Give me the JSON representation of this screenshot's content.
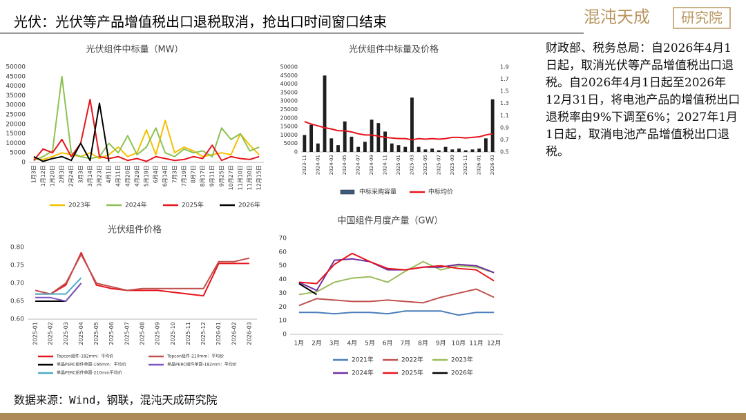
{
  "header": {
    "title": "光伏：光伏等产品增值税出口退税取消，抢出口时间窗口结束",
    "logo_name": "混沌天成",
    "logo_box": "研究院"
  },
  "note": "财政部、税务总局：自2026年4月1日起，取消光伏等产品增值税出口退税。自2026年4月1日起至2026年12月31日，将电池产品的增值税出口退税率由9%下调至6%；2027年1月1日起，取消电池产品增值税出口退税。",
  "source": "数据来源：Wind，钢联，混沌天成研究院",
  "chart_data": [
    {
      "type": "line",
      "title": "光伏组件中标量（MW）",
      "categories": [
        "1月3日",
        "1月12日",
        "1月20日",
        "2月3日",
        "2月24日",
        "3月3日",
        "3月14日",
        "3月23日",
        "4月1日",
        "4月11日",
        "4月20日",
        "4月29日",
        "5月19日",
        "6月4日",
        "6月14日",
        "7月3日",
        "7月19日",
        "8月7日",
        "8月17日",
        "9月11日",
        "9月25日",
        "10月27日",
        "11月10日",
        "11月30日",
        "12月15日"
      ],
      "ylim": [
        0,
        50000
      ],
      "yticks": [
        0,
        5000,
        10000,
        15000,
        20000,
        25000,
        30000,
        35000,
        40000,
        45000,
        50000
      ],
      "grid": false,
      "series": [
        {
          "name": "2023年",
          "color": "#f5c000",
          "values": [
            2000,
            1500,
            3000,
            5000,
            4000,
            3000,
            5000,
            2000,
            4000,
            8000,
            3000,
            5000,
            17000,
            4000,
            22000,
            5000,
            8000,
            6000,
            3000,
            4000,
            5000,
            4000,
            15000,
            9000,
            4000
          ]
        },
        {
          "name": "2024年",
          "color": "#8cc152",
          "values": [
            1000,
            3000,
            6000,
            45000,
            5000,
            3000,
            2000,
            3000,
            10000,
            5000,
            14000,
            4000,
            8000,
            18000,
            5000,
            3000,
            7000,
            5000,
            6000,
            3000,
            18000,
            12000,
            15000,
            6000,
            8000
          ]
        },
        {
          "name": "2025年",
          "color": "#e8141c",
          "values": [
            1000,
            7000,
            5000,
            12000,
            3000,
            10000,
            33000,
            3000,
            2000,
            3000,
            1000,
            2000,
            500,
            3000,
            2000,
            1000,
            1500,
            3000,
            2000,
            9000,
            1000,
            3000,
            2000,
            1500,
            3000
          ]
        },
        {
          "name": "2026年",
          "color": "#000000",
          "values": [
            3000,
            500,
            2000,
            3000,
            1000,
            10000,
            1000,
            31000,
            500,
            null,
            null,
            null,
            null,
            null,
            null,
            null,
            null,
            null,
            null,
            null,
            null,
            null,
            null,
            null,
            null
          ]
        }
      ]
    },
    {
      "type": "combo",
      "title": "光伏组件中标量及价格",
      "categories": [
        "2023-11",
        null,
        "2024-01",
        null,
        "2024-03",
        null,
        "2024-05",
        null,
        "2024-07",
        null,
        "2024-09",
        null,
        "2024-11",
        null,
        "2025-01",
        null,
        "2025-03",
        null,
        "2025-05",
        null,
        "2025-07",
        null,
        "2025-09",
        null,
        "2025-11",
        null,
        "2026-01",
        null,
        "2026-03"
      ],
      "ylim": [
        0,
        50000
      ],
      "yticks": [
        0,
        5000,
        10000,
        15000,
        20000,
        25000,
        30000,
        35000,
        40000,
        45000,
        50000
      ],
      "y2lim": [
        0.5,
        1.9
      ],
      "y2ticks": [
        0.5,
        0.7,
        0.9,
        1.1,
        1.3,
        1.5,
        1.7,
        1.9
      ],
      "grid": false,
      "series": [
        {
          "name": "中标采购容量",
          "type": "bar",
          "color": "#1f1f1f",
          "legend_color": "#3d5a80",
          "values": [
            10000,
            16000,
            5000,
            45000,
            8000,
            4000,
            18000,
            9000,
            3000,
            6000,
            19000,
            17000,
            12000,
            5000,
            4000,
            3000,
            32000,
            3000,
            1500,
            2000,
            1000,
            3000,
            1500,
            2000,
            1000,
            1500,
            2000,
            8000,
            31000
          ]
        },
        {
          "name": "中标均价",
          "type": "line",
          "axis": "y2",
          "color": "#e8141c",
          "values": [
            1.0,
            0.96,
            0.93,
            0.9,
            0.88,
            0.85,
            0.85,
            0.83,
            0.8,
            0.78,
            0.78,
            0.76,
            0.74,
            0.73,
            0.72,
            0.72,
            0.7,
            0.72,
            0.71,
            0.72,
            0.71,
            0.72,
            0.74,
            0.74,
            0.73,
            0.74,
            0.75,
            0.78,
            0.8
          ]
        }
      ]
    },
    {
      "type": "line",
      "title": "光伏组件价格",
      "categories": [
        "2025-01",
        "2025-02",
        "2025-03",
        "2025-04",
        "2025-05",
        "2025-06",
        "2025-07",
        "2025-08",
        "2025-09",
        "2025-10",
        "2025-11",
        "2025-12",
        "2026-01",
        "2026-02",
        "2026-03"
      ],
      "ylim": [
        0.6,
        0.8
      ],
      "yticks": [
        {
          "value": 0.6,
          "label": "0.60"
        },
        0.65,
        {
          "value": 0.7,
          "label": "0.70"
        },
        0.75,
        {
          "value": 0.8,
          "label": "0.80"
        }
      ],
      "grid": false,
      "series": [
        {
          "name": "Topcon组件-182mm：平均价",
          "color": "#e8141c",
          "values": [
            0.67,
            0.67,
            0.695,
            0.785,
            0.695,
            0.685,
            0.68,
            0.68,
            0.68,
            0.675,
            0.67,
            0.665,
            0.755,
            0.755,
            0.755
          ]
        },
        {
          "name": "Topcon组件-210mm：平均价",
          "color": "#c0504d",
          "values": [
            0.68,
            0.67,
            0.7,
            0.78,
            0.7,
            0.69,
            0.68,
            0.685,
            0.685,
            0.685,
            0.685,
            0.685,
            0.76,
            0.76,
            0.77
          ]
        },
        {
          "name": "单晶PERC组件单面-166mm：平均价",
          "color": "#000000",
          "values": [
            0.65,
            0.65,
            0.65,
            0.7,
            null,
            null,
            null,
            null,
            null,
            null,
            null,
            null,
            null,
            null,
            null
          ]
        },
        {
          "name": "单晶PERC组件单面-182mm：平均价",
          "color": "#7e57c2",
          "values": [
            0.66,
            0.66,
            0.65,
            0.7,
            null,
            null,
            null,
            null,
            null,
            null,
            null,
            null,
            null,
            null,
            null
          ]
        },
        {
          "name": "单晶PERC组件单面-210mm平均价",
          "color": "#4bacc6",
          "values": [
            0.67,
            0.67,
            0.67,
            0.715,
            null,
            null,
            null,
            null,
            null,
            null,
            null,
            null,
            null,
            null,
            null
          ]
        }
      ]
    },
    {
      "type": "line",
      "title": "中国组件月度产量（GW）",
      "categories": [
        "1月",
        "2月",
        "3月",
        "4月",
        "5月",
        "6月",
        "7月",
        "8月",
        "9月",
        "10月",
        "11月",
        "12月"
      ],
      "ylim": [
        0,
        70
      ],
      "yticks": [
        0,
        10,
        20,
        30,
        40,
        50,
        60,
        70
      ],
      "grid": false,
      "series": [
        {
          "name": "2021年",
          "color": "#4a7ebb",
          "values": [
            16,
            16,
            15,
            16,
            16,
            15,
            17,
            17,
            17,
            14,
            16,
            16
          ]
        },
        {
          "name": "2022年",
          "color": "#c0504d",
          "values": [
            21,
            26,
            25,
            24,
            24,
            25,
            24,
            23,
            27,
            30,
            33,
            27
          ]
        },
        {
          "name": "2023年",
          "color": "#9bbb59",
          "values": [
            29,
            31,
            38,
            41,
            42,
            38,
            46,
            53,
            47,
            50,
            49,
            45
          ]
        },
        {
          "name": "2024年",
          "color": "#7030a0",
          "values": [
            38,
            32,
            54,
            55,
            53,
            47,
            47,
            49,
            49,
            51,
            50,
            45
          ]
        },
        {
          "name": "2025年",
          "color": "#e8141c",
          "values": [
            38,
            37,
            51,
            59,
            53,
            48,
            47,
            49,
            50,
            48,
            47,
            39
          ]
        },
        {
          "name": "2026年",
          "color": "#000000",
          "values": [
            37,
            29,
            null,
            null,
            null,
            null,
            null,
            null,
            null,
            null,
            null,
            null
          ]
        }
      ]
    }
  ]
}
